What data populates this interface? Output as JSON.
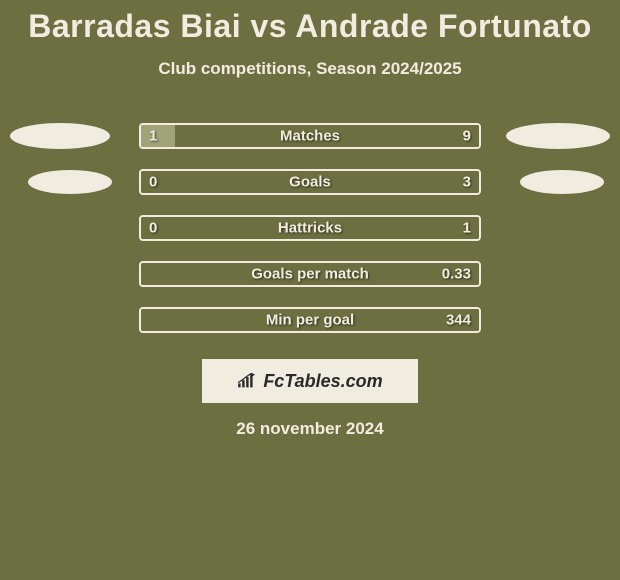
{
  "title": "Barradas Biai vs Andrade Fortunato",
  "subtitle": "Club competitions, Season 2024/2025",
  "date_label": "26 november 2024",
  "branding": {
    "text": "FcTables.com",
    "border_color": "#f0ece0",
    "text_color": "#2a2a2a",
    "bg_color": "#f0ece0"
  },
  "colors": {
    "background": "#6c7040",
    "title_color": "#f0ece0",
    "subtitle_color": "#f0ece0",
    "date_color": "#f0ece0",
    "bar_border": "#f0ece0",
    "bar_label": "#f0ece0",
    "bar_value": "#f0ece0",
    "fill_left": "#a0a378",
    "fill_right": "#6c7040",
    "ellipse_fill": "#f0ece0"
  },
  "stats": [
    {
      "label": "Matches",
      "left_value": "1",
      "right_value": "9",
      "left_pct": 10,
      "right_pct": 90,
      "show_ellipse": true,
      "ellipse_class": ""
    },
    {
      "label": "Goals",
      "left_value": "0",
      "right_value": "3",
      "left_pct": 0,
      "right_pct": 100,
      "show_ellipse": true,
      "ellipse_class": "small"
    },
    {
      "label": "Hattricks",
      "left_value": "0",
      "right_value": "1",
      "left_pct": 0,
      "right_pct": 100,
      "show_ellipse": false,
      "ellipse_class": ""
    },
    {
      "label": "Goals per match",
      "left_value": "",
      "right_value": "0.33",
      "left_pct": 0,
      "right_pct": 100,
      "show_ellipse": false,
      "ellipse_class": ""
    },
    {
      "label": "Min per goal",
      "left_value": "",
      "right_value": "344",
      "left_pct": 0,
      "right_pct": 100,
      "show_ellipse": false,
      "ellipse_class": ""
    }
  ]
}
